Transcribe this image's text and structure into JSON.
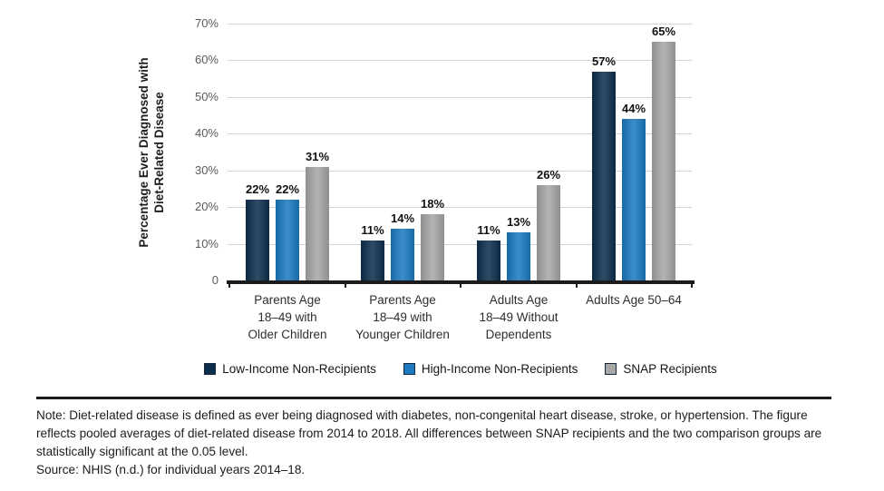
{
  "figure": {
    "note_text": "Note: Diet-related disease is defined as ever being diagnosed with diabetes, non-congenital heart disease, stroke, or hypertension. The figure reflects pooled averages of diet-related disease from 2014 to 2018. All differences between SNAP recipients and the two comparison groups are statistically significant at the 0.05 level.",
    "source_text": "Source: NHIS (n.d.) for individual years 2014–18."
  },
  "chart_data": {
    "type": "bar",
    "title": "",
    "ylabel": "Percentage Ever Diagnosed with Diet-Related Disease",
    "ylabel_lines": [
      "Percentage Ever Diagnosed with",
      "Diet-Related Disease"
    ],
    "categories": [
      "Parents Age 18–49 with Older Children",
      "Parents Age 18–49 with Younger Children",
      "Adults Age 18–49 Without Dependents",
      "Adults Age 50–64"
    ],
    "category_label_lines": [
      [
        "Parents Age",
        "18–49 with",
        "Older Children"
      ],
      [
        "Parents Age",
        "18–49 with",
        "Younger Children"
      ],
      [
        "Adults Age",
        "18–49 Without",
        "Dependents"
      ],
      [
        "Adults Age 50–64"
      ]
    ],
    "series": [
      {
        "name": "Low-Income Non-Recipients",
        "color": "#0e2e4e",
        "values": [
          22,
          11,
          11,
          57
        ]
      },
      {
        "name": "High-Income Non-Recipients",
        "color": "#1b7ac1",
        "values": [
          22,
          14,
          13,
          44
        ]
      },
      {
        "name": "SNAP Recipients",
        "color": "#a7a7a7",
        "values": [
          31,
          18,
          26,
          65
        ]
      }
    ],
    "value_suffix": "%",
    "ylim": [
      0,
      70
    ],
    "yticks": [
      0,
      10,
      20,
      30,
      40,
      50,
      60,
      70
    ],
    "ytick_labels": [
      "0",
      "10%",
      "20%",
      "30%",
      "40%",
      "50%",
      "60%",
      "70%"
    ],
    "grid": true,
    "legend_position": "bottom",
    "colors": {
      "axis": "#1b1b1b",
      "grid": "#d4d4d4",
      "tick_label": "#5a5a5a",
      "value_label": "#121212",
      "category_label": "#2e2e2e",
      "note_text": "#1c1c1c"
    }
  }
}
